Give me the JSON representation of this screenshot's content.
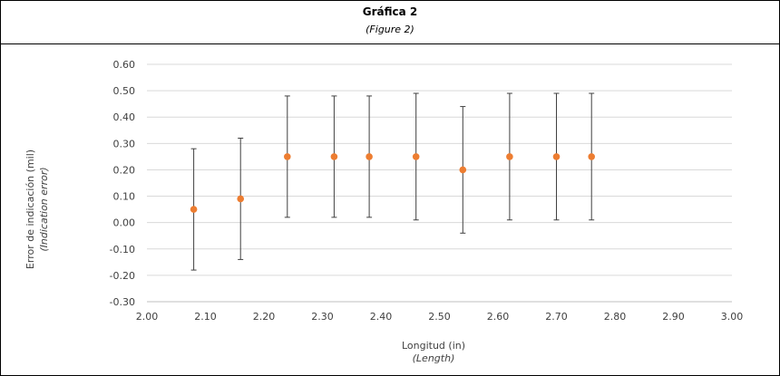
{
  "chart_data": {
    "type": "scatter",
    "title": "Gráfica 2",
    "subtitle": "(Figure 2)",
    "xlabel": "Longitud (in)",
    "xlabel_en": "(Length)",
    "ylabel": "Error de indicación (mil)",
    "ylabel_en": "(Indication error)",
    "xlim": [
      2.0,
      3.0
    ],
    "ylim": [
      -0.3,
      0.6
    ],
    "x_tick_labels": [
      "2.00",
      "2.10",
      "2.20",
      "2.30",
      "2.40",
      "2.50",
      "2.60",
      "2.70",
      "2.80",
      "2.90",
      "3.00"
    ],
    "y_tick_labels": [
      "-0.30",
      "-0.20",
      "-0.10",
      "0.00",
      "0.10",
      "0.20",
      "0.30",
      "0.40",
      "0.50",
      "0.60"
    ],
    "grid": true,
    "marker_color": "#ED7D31",
    "error_bar_color": "#404040",
    "points": [
      {
        "x": 2.08,
        "y": 0.05,
        "low": -0.18,
        "high": 0.28
      },
      {
        "x": 2.16,
        "y": 0.09,
        "low": -0.14,
        "high": 0.32
      },
      {
        "x": 2.24,
        "y": 0.25,
        "low": 0.02,
        "high": 0.48
      },
      {
        "x": 2.32,
        "y": 0.25,
        "low": 0.02,
        "high": 0.48
      },
      {
        "x": 2.38,
        "y": 0.25,
        "low": 0.02,
        "high": 0.48
      },
      {
        "x": 2.46,
        "y": 0.25,
        "low": 0.01,
        "high": 0.49
      },
      {
        "x": 2.54,
        "y": 0.2,
        "low": -0.04,
        "high": 0.44
      },
      {
        "x": 2.62,
        "y": 0.25,
        "low": 0.01,
        "high": 0.49
      },
      {
        "x": 2.7,
        "y": 0.25,
        "low": 0.01,
        "high": 0.49
      },
      {
        "x": 2.76,
        "y": 0.25,
        "low": 0.01,
        "high": 0.49
      }
    ]
  }
}
